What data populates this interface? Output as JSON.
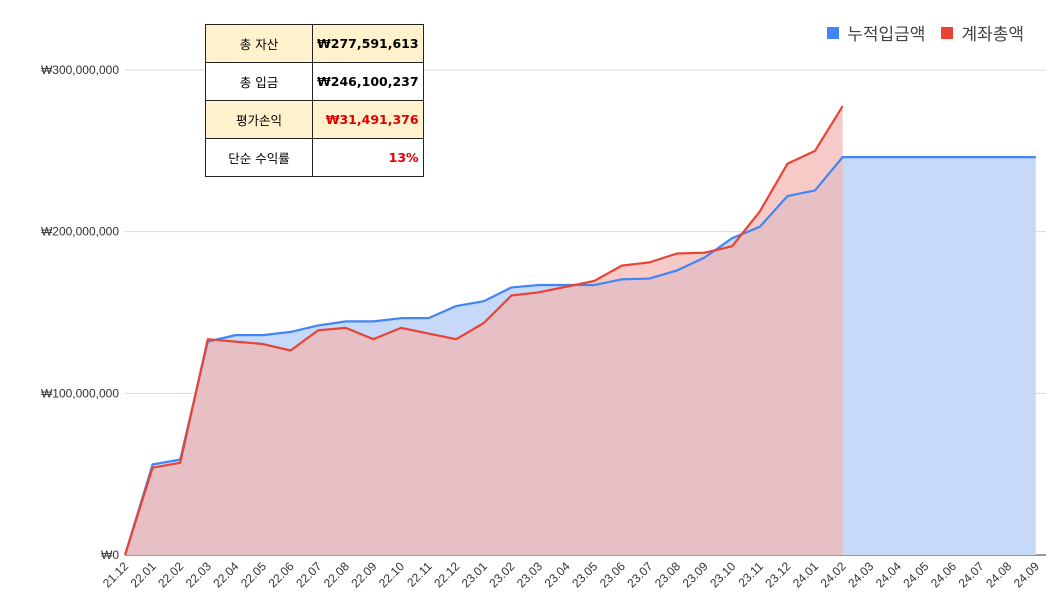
{
  "summary": {
    "rows": [
      {
        "label": "총 자산",
        "value": "₩277,591,613",
        "highlight": true,
        "value_color": "#000000"
      },
      {
        "label": "총 입금",
        "value": "₩246,100,237",
        "highlight": false,
        "value_color": "#000000"
      },
      {
        "label": "평가손익",
        "value": "₩31,491,376",
        "highlight": true,
        "value_color": "#e00000"
      },
      {
        "label": "단순 수익률",
        "value": "13%",
        "highlight": false,
        "value_color": "#e00000"
      }
    ]
  },
  "chart_data": {
    "type": "area",
    "x": [
      "21.12",
      "22.01",
      "22.02",
      "22.03",
      "22.04",
      "22.05",
      "22.06",
      "22.07",
      "22.08",
      "22.09",
      "22.10",
      "22.11",
      "22.12",
      "23.01",
      "23.02",
      "23.03",
      "23.04",
      "23.05",
      "23.06",
      "23.07",
      "23.08",
      "23.09",
      "23.10",
      "23.11",
      "23.12",
      "24.01",
      "24.02",
      "24.03",
      "24.04",
      "24.05",
      "24.06",
      "24.07",
      "24.08",
      "24.09"
    ],
    "series": [
      {
        "name": "누적입금액",
        "color": "#4285f4",
        "fill": "#c6d9f8",
        "values": [
          0,
          56000000,
          59000000,
          132000000,
          136000000,
          136000000,
          138000000,
          142000000,
          144500000,
          144500000,
          146500000,
          146500000,
          154000000,
          157000000,
          165500000,
          167000000,
          167000000,
          167000000,
          170500000,
          171000000,
          176000000,
          184000000,
          196000000,
          203000000,
          222000000,
          225500000,
          246100237,
          246100237,
          246100237,
          246100237,
          246100237,
          246100237,
          246100237,
          246100237
        ]
      },
      {
        "name": "계좌총액",
        "color": "#ea4335",
        "fill": "#f3b6b0",
        "values": [
          0,
          54000000,
          57000000,
          133500000,
          132000000,
          130500000,
          126500000,
          139000000,
          140500000,
          133500000,
          140500000,
          137000000,
          133500000,
          143500000,
          160500000,
          162500000,
          166000000,
          169500000,
          179000000,
          181000000,
          186500000,
          187000000,
          191000000,
          212500000,
          242000000,
          250000000,
          277591613,
          null,
          null,
          null,
          null,
          null,
          null,
          null
        ]
      }
    ],
    "y_ticks": [
      "₩0",
      "₩100,000,000",
      "₩200,000,000",
      "₩300,000,000"
    ],
    "ylim": [
      0,
      300000000
    ],
    "grid": true,
    "legend": "top-right"
  }
}
